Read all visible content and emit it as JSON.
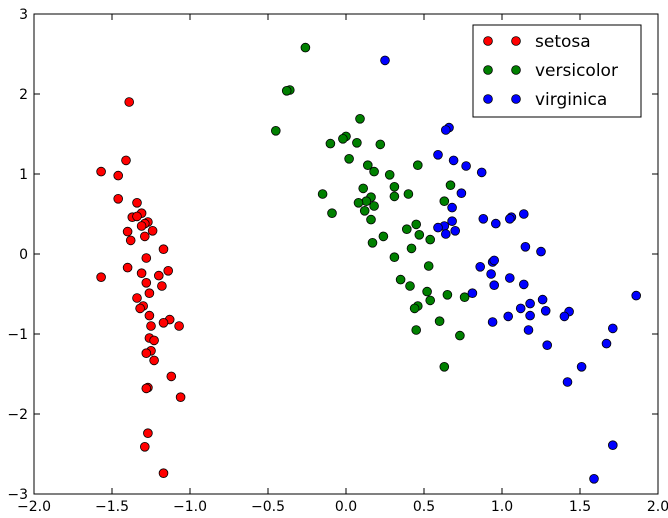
{
  "chart_data": {
    "type": "scatter",
    "title": "",
    "xlabel": "",
    "ylabel": "",
    "xlim": [
      -2.0,
      2.0
    ],
    "ylim": [
      -3,
      3
    ],
    "xticks": [
      -2.0,
      -1.5,
      -1.0,
      -0.5,
      0.0,
      0.5,
      1.0,
      1.5,
      2.0
    ],
    "yticks": [
      -3,
      -2,
      -1,
      0,
      1,
      2,
      3
    ],
    "xtick_labels": [
      "−2.0",
      "−1.5",
      "−1.0",
      "−0.5",
      "0.0",
      "0.5",
      "1.0",
      "1.5",
      "2.0"
    ],
    "ytick_labels": [
      "−3",
      "−2",
      "−1",
      "0",
      "1",
      "2",
      "3"
    ],
    "grid": false,
    "legend_position": "top-right",
    "series": [
      {
        "name": "setosa",
        "color": "#ff0000",
        "points": [
          [
            -1.39,
            1.9
          ],
          [
            -1.57,
            1.03
          ],
          [
            -1.41,
            1.17
          ],
          [
            -1.46,
            0.98
          ],
          [
            -1.46,
            0.69
          ],
          [
            -1.34,
            0.64
          ],
          [
            -1.31,
            0.51
          ],
          [
            -1.37,
            0.46
          ],
          [
            -1.34,
            0.47
          ],
          [
            -1.27,
            0.4
          ],
          [
            -1.29,
            0.38
          ],
          [
            -1.31,
            0.35
          ],
          [
            -1.4,
            0.28
          ],
          [
            -1.24,
            0.29
          ],
          [
            -1.29,
            0.22
          ],
          [
            -1.38,
            0.17
          ],
          [
            -1.17,
            0.06
          ],
          [
            -1.28,
            -0.05
          ],
          [
            -1.4,
            -0.17
          ],
          [
            -1.14,
            -0.21
          ],
          [
            -1.2,
            -0.27
          ],
          [
            -1.31,
            -0.24
          ],
          [
            -1.57,
            -0.29
          ],
          [
            -1.28,
            -0.36
          ],
          [
            -1.18,
            -0.4
          ],
          [
            -1.26,
            -0.49
          ],
          [
            -1.34,
            -0.55
          ],
          [
            -1.3,
            -0.65
          ],
          [
            -1.32,
            -0.68
          ],
          [
            -1.26,
            -0.77
          ],
          [
            -1.13,
            -0.82
          ],
          [
            -1.17,
            -0.86
          ],
          [
            -1.25,
            -0.9
          ],
          [
            -1.07,
            -0.9
          ],
          [
            -1.26,
            -1.05
          ],
          [
            -1.23,
            -1.08
          ],
          [
            -1.25,
            -1.21
          ],
          [
            -1.28,
            -1.24
          ],
          [
            -1.23,
            -1.33
          ],
          [
            -1.12,
            -1.53
          ],
          [
            -1.27,
            -1.67
          ],
          [
            -1.28,
            -1.68
          ],
          [
            -1.06,
            -1.79
          ],
          [
            -1.27,
            -2.24
          ],
          [
            -1.29,
            -2.41
          ],
          [
            -1.17,
            -2.74
          ]
        ]
      },
      {
        "name": "versicolor",
        "color": "#008000",
        "points": [
          [
            -0.26,
            2.58
          ],
          [
            -0.36,
            2.05
          ],
          [
            -0.38,
            2.04
          ],
          [
            -0.45,
            1.54
          ],
          [
            0.09,
            1.69
          ],
          [
            0.0,
            1.47
          ],
          [
            -0.02,
            1.44
          ],
          [
            0.07,
            1.39
          ],
          [
            -0.1,
            1.38
          ],
          [
            0.22,
            1.37
          ],
          [
            0.02,
            1.19
          ],
          [
            0.14,
            1.11
          ],
          [
            0.46,
            1.11
          ],
          [
            0.18,
            1.03
          ],
          [
            0.28,
            0.99
          ],
          [
            0.67,
            0.86
          ],
          [
            0.11,
            0.82
          ],
          [
            0.31,
            0.84
          ],
          [
            0.31,
            0.72
          ],
          [
            0.4,
            0.75
          ],
          [
            -0.15,
            0.75
          ],
          [
            0.16,
            0.71
          ],
          [
            0.13,
            0.66
          ],
          [
            0.08,
            0.64
          ],
          [
            0.63,
            0.66
          ],
          [
            0.18,
            0.6
          ],
          [
            0.12,
            0.54
          ],
          [
            -0.09,
            0.51
          ],
          [
            0.16,
            0.43
          ],
          [
            0.45,
            0.37
          ],
          [
            0.39,
            0.31
          ],
          [
            0.47,
            0.24
          ],
          [
            0.24,
            0.22
          ],
          [
            0.54,
            0.18
          ],
          [
            0.17,
            0.14
          ],
          [
            0.42,
            0.07
          ],
          [
            0.31,
            -0.04
          ],
          [
            0.53,
            -0.15
          ],
          [
            0.35,
            -0.32
          ],
          [
            0.41,
            -0.4
          ],
          [
            0.52,
            -0.47
          ],
          [
            0.65,
            -0.51
          ],
          [
            0.76,
            -0.54
          ],
          [
            0.54,
            -0.58
          ],
          [
            0.46,
            -0.65
          ],
          [
            0.44,
            -0.68
          ],
          [
            0.6,
            -0.84
          ],
          [
            0.45,
            -0.95
          ],
          [
            0.73,
            -1.02
          ],
          [
            0.63,
            -1.41
          ]
        ]
      },
      {
        "name": "virginica",
        "color": "#0000ff",
        "points": [
          [
            0.25,
            2.42
          ],
          [
            0.66,
            1.58
          ],
          [
            0.64,
            1.55
          ],
          [
            0.59,
            1.24
          ],
          [
            0.69,
            1.17
          ],
          [
            0.77,
            1.1
          ],
          [
            0.87,
            1.02
          ],
          [
            0.74,
            0.76
          ],
          [
            0.68,
            0.58
          ],
          [
            0.88,
            0.44
          ],
          [
            0.68,
            0.41
          ],
          [
            1.06,
            0.46
          ],
          [
            1.05,
            0.44
          ],
          [
            1.14,
            0.5
          ],
          [
            0.96,
            0.38
          ],
          [
            0.63,
            0.35
          ],
          [
            0.59,
            0.33
          ],
          [
            0.7,
            0.29
          ],
          [
            0.64,
            0.25
          ],
          [
            1.15,
            0.09
          ],
          [
            1.25,
            0.03
          ],
          [
            0.94,
            -0.1
          ],
          [
            0.95,
            -0.08
          ],
          [
            0.86,
            -0.16
          ],
          [
            0.93,
            -0.25
          ],
          [
            1.05,
            -0.3
          ],
          [
            1.14,
            -0.38
          ],
          [
            0.95,
            -0.39
          ],
          [
            0.81,
            -0.49
          ],
          [
            1.86,
            -0.52
          ],
          [
            1.26,
            -0.57
          ],
          [
            1.18,
            -0.62
          ],
          [
            1.12,
            -0.68
          ],
          [
            1.28,
            -0.71
          ],
          [
            1.43,
            -0.72
          ],
          [
            1.18,
            -0.77
          ],
          [
            1.4,
            -0.78
          ],
          [
            1.04,
            -0.78
          ],
          [
            0.94,
            -0.85
          ],
          [
            1.71,
            -0.93
          ],
          [
            1.17,
            -0.95
          ],
          [
            1.29,
            -1.14
          ],
          [
            1.67,
            -1.12
          ],
          [
            1.51,
            -1.41
          ],
          [
            1.42,
            -1.6
          ],
          [
            1.71,
            -2.39
          ],
          [
            1.59,
            -2.81
          ]
        ]
      }
    ]
  }
}
